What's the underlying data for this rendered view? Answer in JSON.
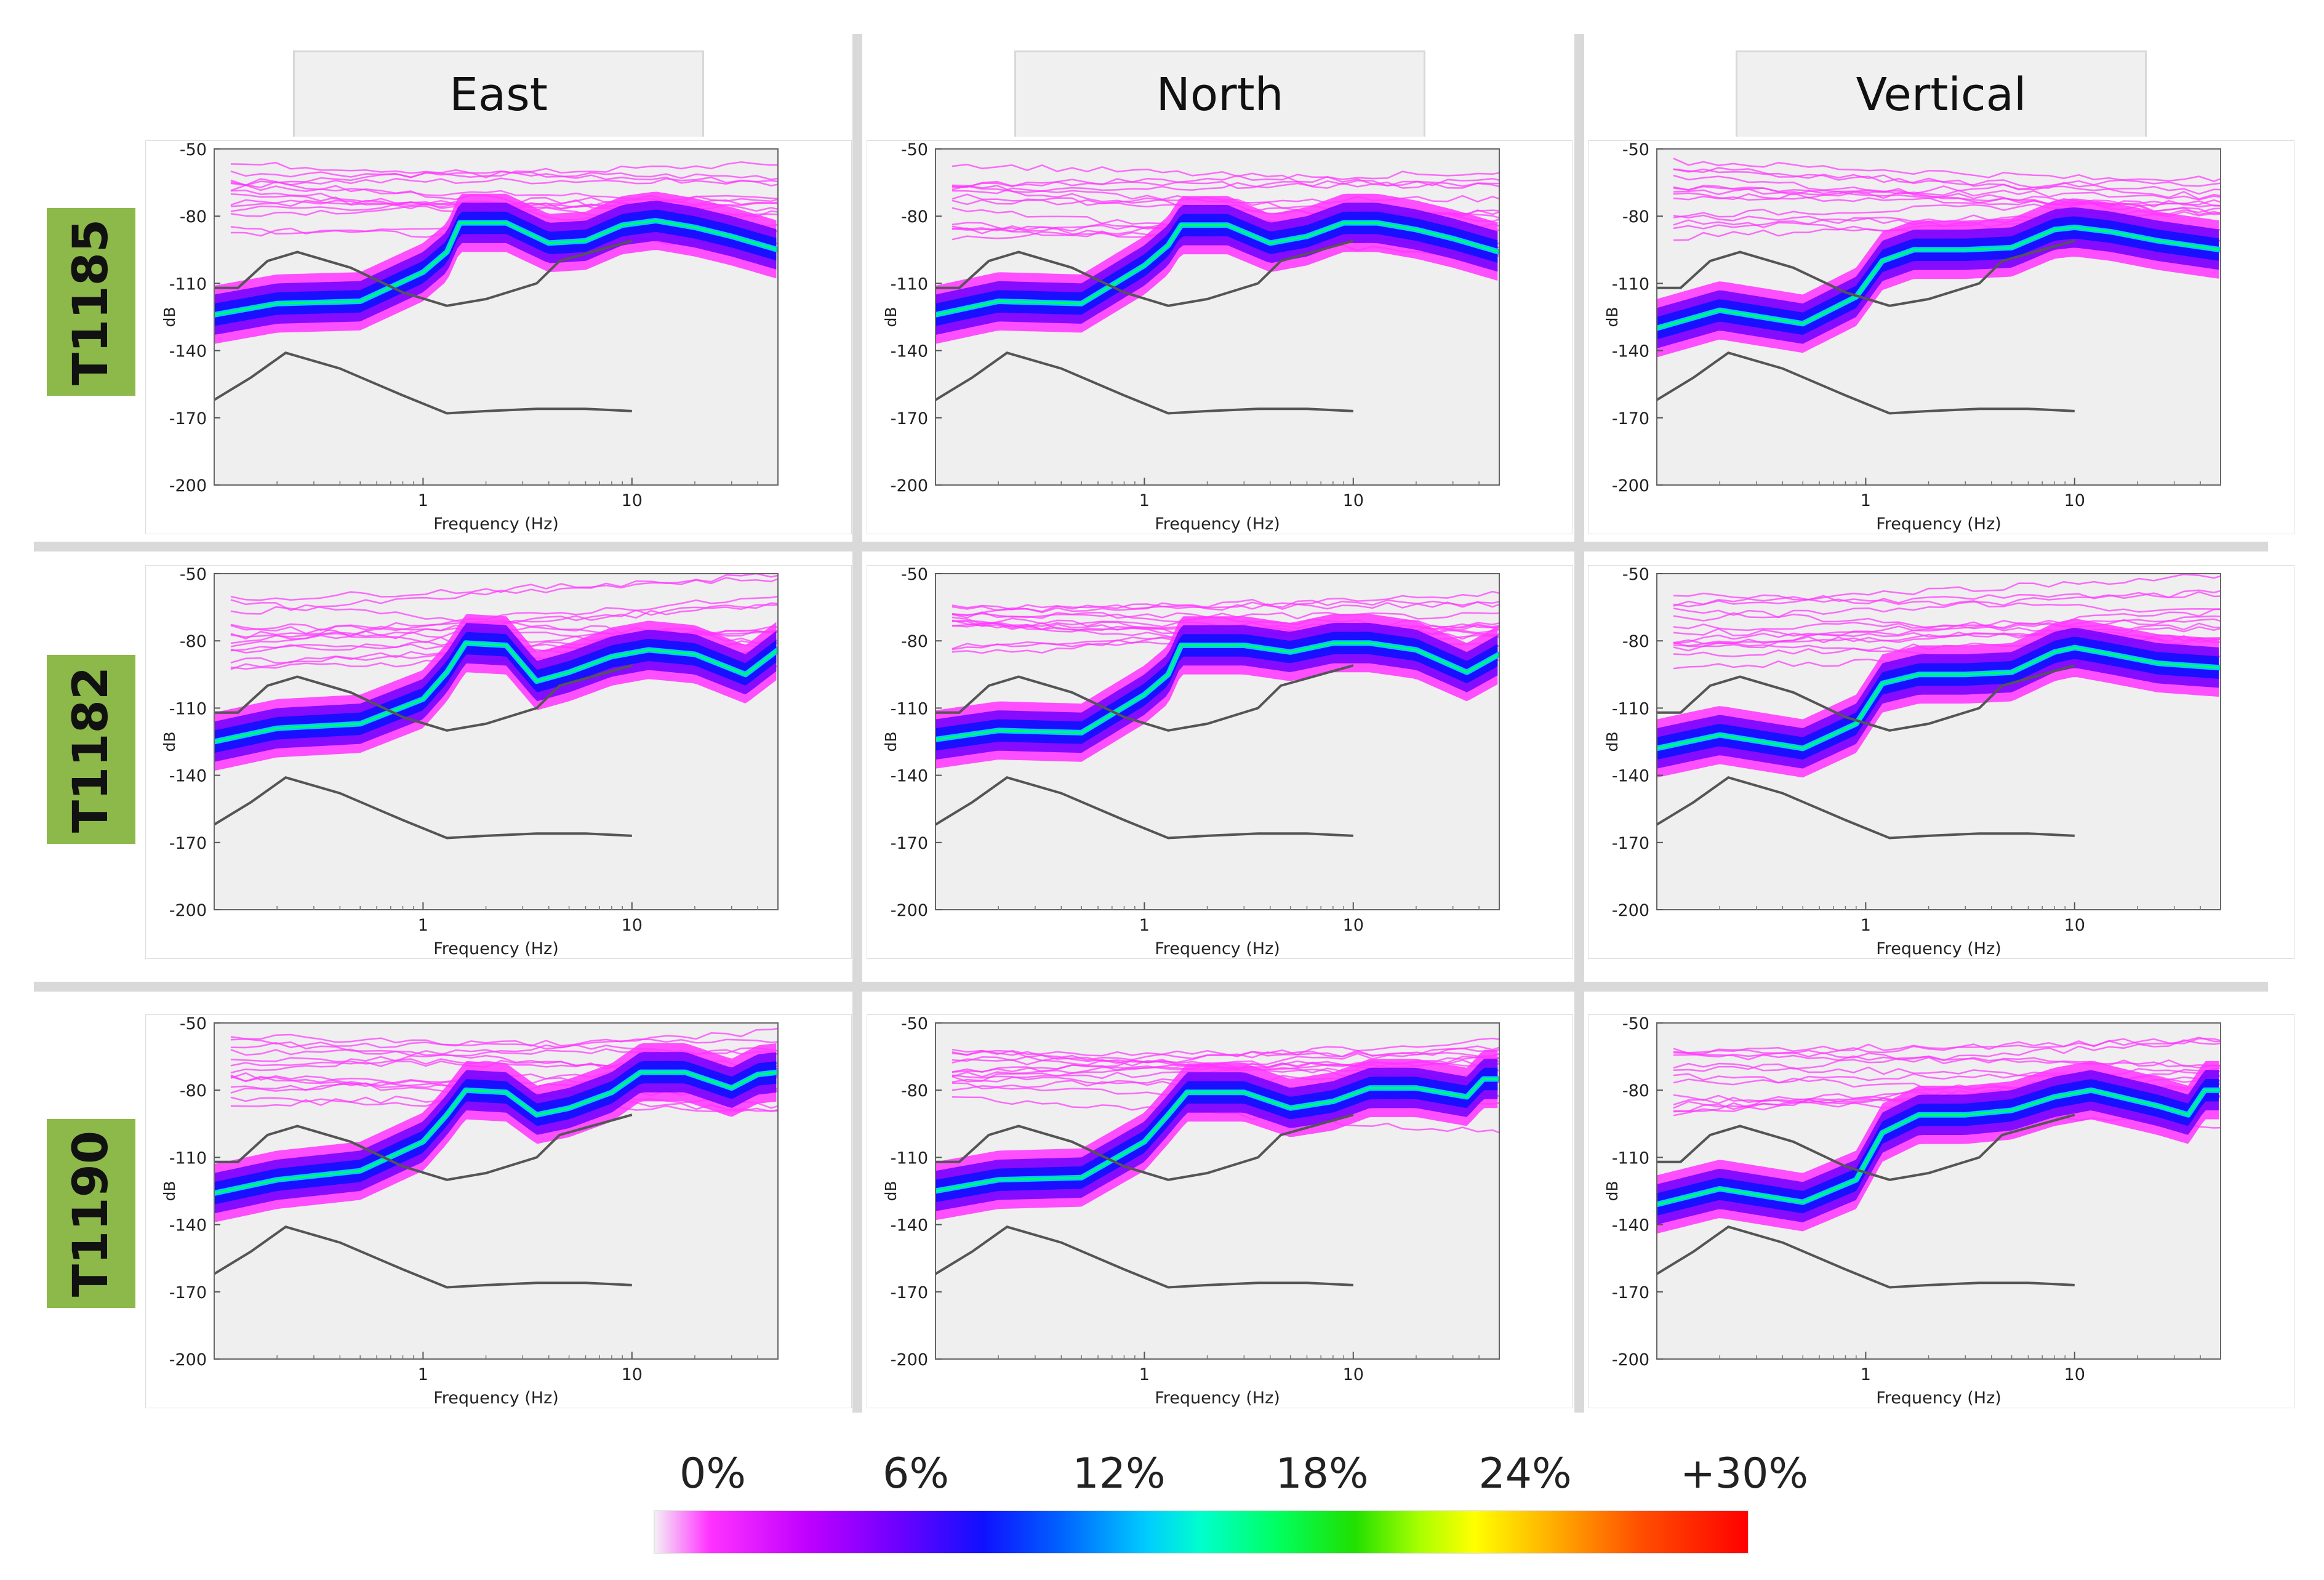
{
  "columns": [
    "East",
    "North",
    "Vertical"
  ],
  "stations": [
    "T1185",
    "T1182",
    "T1190"
  ],
  "colorbar": {
    "tick_labels": [
      "0%",
      "6%",
      "12%",
      "18%",
      "24%",
      "+30%"
    ],
    "colors": [
      "#ff33ff",
      "#7000ff",
      "#1010ff",
      "#00ccff",
      "#00ff60",
      "#ffff00",
      "#ff0000"
    ]
  },
  "chart_data": {
    "type": "line",
    "xlabel": "Frequency (Hz)",
    "ylabel": "dB",
    "x_scale": "log",
    "xlim": [
      0.1,
      50
    ],
    "ylim": [
      -200,
      -50
    ],
    "x_ticks": [
      "1",
      "10"
    ],
    "y_ticks": [
      "-50",
      "-80",
      "-110",
      "-140",
      "-170",
      "-200"
    ],
    "reference_curves": [
      {
        "x": [
          0.1,
          0.15,
          0.22,
          0.4,
          0.8,
          1.3,
          2,
          3.5,
          6,
          10
        ],
        "y": [
          -162,
          -152,
          -141,
          -148,
          -160,
          -168,
          -167,
          -166,
          -166,
          -167
        ]
      },
      {
        "x": [
          0.1,
          0.13,
          0.18,
          0.25,
          0.45,
          0.8,
          1.3,
          2,
          3.5,
          4.5,
          7,
          10
        ],
        "y": [
          -112,
          -112,
          -100,
          -96,
          -103,
          -114,
          -120,
          -117,
          -110,
          -100,
          -95,
          -91
        ]
      }
    ],
    "panels": [
      {
        "station": "T1185",
        "component": "East",
        "mode": {
          "x": [
            0.1,
            0.2,
            0.5,
            1.0,
            1.3,
            1.5,
            2.5,
            4,
            6,
            9,
            13,
            20,
            30,
            50
          ],
          "y": [
            -124,
            -119,
            -118,
            -105,
            -96,
            -83,
            -83,
            -92,
            -91,
            -84,
            -82,
            -85,
            -89,
            -95
          ]
        }
      },
      {
        "station": "T1185",
        "component": "North",
        "mode": {
          "x": [
            0.1,
            0.2,
            0.5,
            1.0,
            1.3,
            1.5,
            2.5,
            4,
            6,
            9,
            13,
            20,
            30,
            50
          ],
          "y": [
            -124,
            -118,
            -119,
            -102,
            -93,
            -84,
            -84,
            -92,
            -89,
            -83,
            -83,
            -86,
            -90,
            -96
          ]
        }
      },
      {
        "station": "T1185",
        "component": "Vertical",
        "mode": {
          "x": [
            0.1,
            0.2,
            0.5,
            0.9,
            1.2,
            1.7,
            3,
            5,
            8,
            10,
            15,
            25,
            50
          ],
          "y": [
            -130,
            -122,
            -128,
            -116,
            -100,
            -95,
            -95,
            -94,
            -86,
            -85,
            -87,
            -91,
            -95
          ]
        }
      },
      {
        "station": "T1182",
        "component": "East",
        "mode": {
          "x": [
            0.1,
            0.2,
            0.5,
            1.0,
            1.3,
            1.6,
            2.5,
            3.5,
            5,
            8,
            12,
            20,
            35,
            50
          ],
          "y": [
            -125,
            -119,
            -117,
            -106,
            -94,
            -81,
            -82,
            -98,
            -94,
            -87,
            -84,
            -86,
            -95,
            -84
          ]
        }
      },
      {
        "station": "T1182",
        "component": "North",
        "mode": {
          "x": [
            0.1,
            0.2,
            0.5,
            1.0,
            1.3,
            1.5,
            3,
            5,
            8,
            12,
            20,
            35,
            50
          ],
          "y": [
            -124,
            -120,
            -121,
            -104,
            -95,
            -82,
            -82,
            -85,
            -81,
            -81,
            -84,
            -94,
            -86
          ]
        }
      },
      {
        "station": "T1182",
        "component": "Vertical",
        "mode": {
          "x": [
            0.1,
            0.2,
            0.5,
            0.9,
            1.2,
            1.8,
            3,
            5,
            8,
            10,
            15,
            25,
            50
          ],
          "y": [
            -128,
            -122,
            -128,
            -117,
            -99,
            -95,
            -95,
            -94,
            -85,
            -83,
            -86,
            -90,
            -92
          ]
        }
      },
      {
        "station": "T1190",
        "component": "East",
        "mode": {
          "x": [
            0.1,
            0.2,
            0.5,
            1.0,
            1.3,
            1.6,
            2.5,
            3.5,
            5,
            8,
            11,
            18,
            30,
            40,
            50
          ],
          "y": [
            -126,
            -120,
            -116,
            -103,
            -91,
            -80,
            -81,
            -91,
            -88,
            -81,
            -72,
            -72,
            -79,
            -73,
            -72
          ]
        }
      },
      {
        "station": "T1190",
        "component": "North",
        "mode": {
          "x": [
            0.1,
            0.2,
            0.5,
            1.0,
            1.3,
            1.6,
            3,
            5,
            8,
            12,
            20,
            35,
            42,
            50
          ],
          "y": [
            -125,
            -120,
            -119,
            -103,
            -91,
            -81,
            -81,
            -88,
            -85,
            -79,
            -79,
            -83,
            -75,
            -75
          ]
        }
      },
      {
        "station": "T1190",
        "component": "Vertical",
        "mode": {
          "x": [
            0.1,
            0.2,
            0.5,
            0.9,
            1.2,
            1.8,
            3,
            5,
            8,
            12,
            25,
            35,
            42,
            50
          ],
          "y": [
            -131,
            -124,
            -130,
            -120,
            -99,
            -91,
            -91,
            -89,
            -83,
            -80,
            -87,
            -91,
            -80,
            -80
          ]
        }
      }
    ]
  }
}
